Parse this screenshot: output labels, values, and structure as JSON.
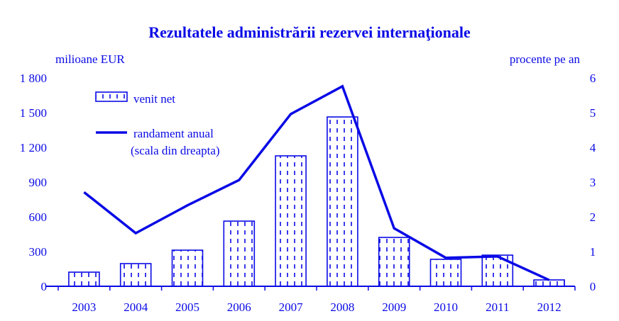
{
  "chart_data": {
    "type": "bar",
    "title": "Rezultatele administrării rezervei internaţionale",
    "ylabel": "milioane EUR",
    "y2label": "procente pe an",
    "xlabel": "",
    "categories": [
      "2003",
      "2004",
      "2005",
      "2006",
      "2007",
      "2008",
      "2009",
      "2010",
      "2011",
      "2012"
    ],
    "ylim": [
      0,
      1800
    ],
    "y2lim": [
      0,
      6
    ],
    "yticks": [
      "0",
      "300",
      "600",
      "900",
      "1 200",
      "1 500",
      "1 800"
    ],
    "y2ticks": [
      "0",
      "1",
      "2",
      "3",
      "4",
      "5",
      "6"
    ],
    "grid": false,
    "legend_position": "top-left",
    "series": [
      {
        "name": "venit net",
        "type": "bar",
        "axis": "left",
        "values": [
          122,
          196,
          312,
          563,
          1127,
          1463,
          422,
          233,
          269,
          55
        ]
      },
      {
        "name": "randament anual",
        "name_line2": "(scala din dreapta)",
        "type": "line",
        "axis": "right",
        "values": [
          2.71,
          1.53,
          2.33,
          3.06,
          4.96,
          5.76,
          1.67,
          0.82,
          0.86,
          0.18
        ]
      }
    ],
    "color": "#0a0ae6"
  }
}
